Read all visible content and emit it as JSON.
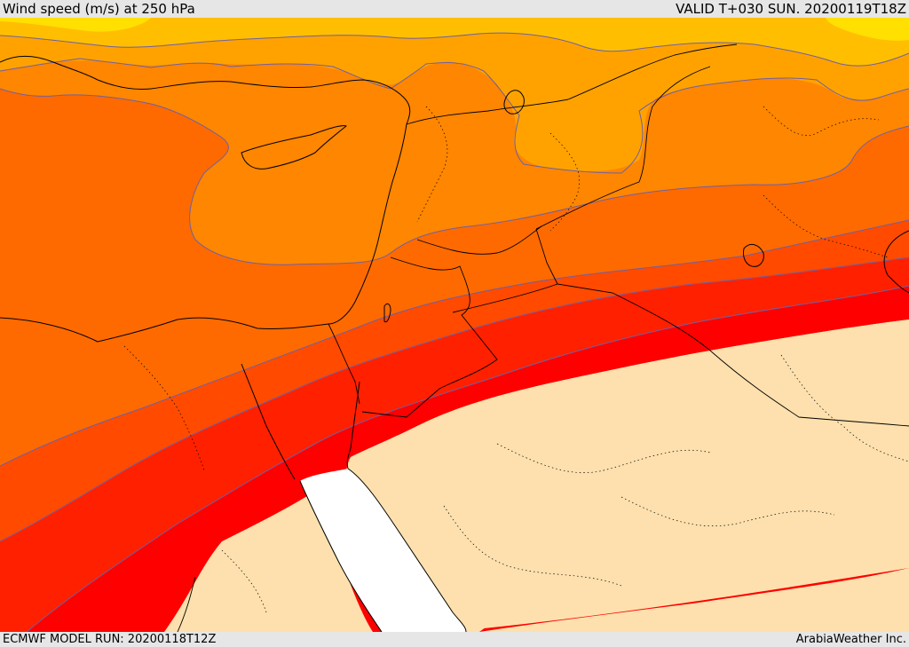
{
  "header": {
    "title": "Wind speed (m/s) at 250 hPa",
    "valid": "VALID T+030 SUN. 20200119T18Z"
  },
  "footer": {
    "model_run": "ECMWF MODEL RUN: 20200118T12Z",
    "credit": "ArabiaWeather Inc."
  },
  "map": {
    "field": "wind-speed-250hPa",
    "palette": {
      "band_1": "#ffe000",
      "band_2": "#ffbf00",
      "band_3": "#ffa200",
      "band_4": "#ff8600",
      "band_5": "#ff6a00",
      "band_6": "#ff4a00",
      "band_7": "#ff2000",
      "band_8": "#ff0000",
      "below_threshold": "#fde0ad",
      "masked_water": "#ffffff"
    },
    "contour_color": "#7060a0",
    "coastline_color": "#000000",
    "border_color": "#000000"
  }
}
